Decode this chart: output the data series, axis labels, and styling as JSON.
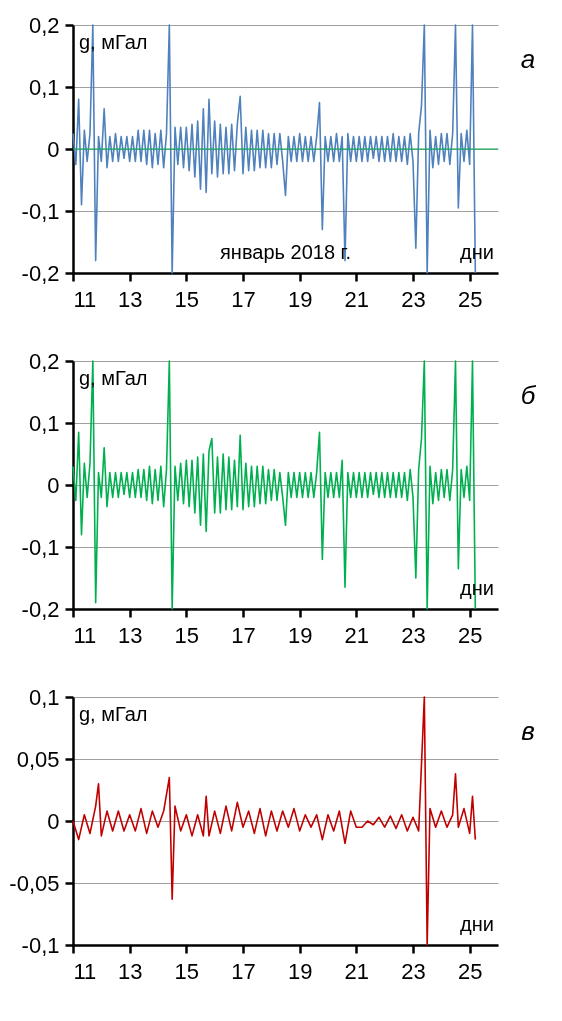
{
  "chart_data": [
    {
      "type": "line",
      "ylabel": "g, мГал",
      "xlabel": "дни",
      "annotations": [
        "а",
        "январь 2018 г."
      ],
      "grid": "y",
      "xlim": [
        11,
        26
      ],
      "xticks": [
        11,
        13,
        15,
        17,
        19,
        21,
        23,
        25
      ],
      "ylim": [
        -0.2,
        0.2
      ],
      "yticks": [
        {
          "value": -0.2,
          "label": "-0,2"
        },
        {
          "value": -0.1,
          "label": "-0,1"
        },
        {
          "value": 0,
          "label": "0"
        },
        {
          "value": 0.1,
          "label": "0,1"
        },
        {
          "value": 0.2,
          "label": "0,2"
        }
      ],
      "ref_lines": [
        {
          "axis": "y",
          "value": 0,
          "color": "#00b050"
        }
      ],
      "x": [
        11,
        11.1,
        11.2,
        11.3,
        11.4,
        11.5,
        11.6,
        11.7,
        11.8,
        11.9,
        12,
        12.1,
        12.2,
        12.3,
        12.4,
        12.5,
        12.6,
        12.7,
        12.8,
        12.9,
        13,
        13.1,
        13.2,
        13.3,
        13.4,
        13.5,
        13.6,
        13.7,
        13.8,
        13.9,
        14,
        14.1,
        14.2,
        14.3,
        14.4,
        14.5,
        14.6,
        14.7,
        14.8,
        14.9,
        15,
        15.1,
        15.2,
        15.3,
        15.4,
        15.5,
        15.6,
        15.7,
        15.8,
        15.9,
        16,
        16.1,
        16.2,
        16.3,
        16.4,
        16.5,
        16.6,
        16.7,
        16.8,
        16.9,
        17,
        17.1,
        17.2,
        17.3,
        17.4,
        17.5,
        17.6,
        17.7,
        17.8,
        17.9,
        18,
        18.1,
        18.2,
        18.3,
        18.4,
        18.5,
        18.6,
        18.7,
        18.8,
        18.9,
        19,
        19.1,
        19.2,
        19.3,
        19.4,
        19.5,
        19.6,
        19.7,
        19.8,
        19.9,
        20,
        20.1,
        20.2,
        20.3,
        20.4,
        20.5,
        20.6,
        20.7,
        20.8,
        20.9,
        21,
        21.1,
        21.2,
        21.3,
        21.4,
        21.5,
        21.6,
        21.7,
        21.8,
        21.9,
        22,
        22.1,
        22.2,
        22.3,
        22.4,
        22.5,
        22.6,
        22.7,
        22.8,
        22.9,
        23,
        23.1,
        23.2,
        23.3,
        23.4,
        23.5,
        23.6,
        23.7,
        23.8,
        23.9,
        24,
        24.1,
        24.2,
        24.3,
        24.4,
        24.5,
        24.6,
        24.7,
        24.8,
        24.9,
        25,
        25.1,
        25.2
      ],
      "series": [
        {
          "color": "#4f81bd",
          "values": [
            0.025,
            -0.025,
            0.08,
            -0.09,
            0.03,
            -0.02,
            0.025,
            0.2,
            -0.18,
            0.02,
            -0.02,
            0.065,
            -0.03,
            0.02,
            -0.02,
            0.025,
            -0.02,
            0.02,
            -0.015,
            0.02,
            -0.02,
            0.02,
            -0.02,
            0.03,
            -0.02,
            0.03,
            -0.025,
            0.03,
            -0.03,
            0.025,
            -0.025,
            0.03,
            -0.03,
            0.025,
            0.2,
            -0.2,
            0.035,
            -0.025,
            0.035,
            -0.03,
            0.035,
            -0.035,
            0.04,
            -0.045,
            0.045,
            -0.065,
            0.065,
            -0.07,
            0.08,
            -0.04,
            0.045,
            -0.045,
            0.04,
            -0.04,
            0.035,
            -0.04,
            0.04,
            -0.035,
            0.04,
            0.085,
            -0.04,
            0.035,
            -0.035,
            0.03,
            -0.035,
            0.03,
            -0.03,
            0.03,
            -0.03,
            0.025,
            -0.03,
            0.025,
            -0.025,
            0.025,
            -0.02,
            -0.075,
            0.02,
            -0.02,
            0.02,
            -0.02,
            0.025,
            -0.02,
            0.02,
            -0.02,
            0.02,
            -0.02,
            0.02,
            0.075,
            -0.13,
            0.02,
            -0.02,
            0.02,
            -0.02,
            0.025,
            -0.02,
            0.02,
            -0.18,
            0.025,
            -0.02,
            0.02,
            -0.02,
            0.02,
            -0.02,
            0.02,
            -0.02,
            0.02,
            -0.015,
            0.02,
            -0.02,
            0.02,
            -0.02,
            0.02,
            -0.02,
            0.025,
            -0.02,
            0.02,
            -0.02,
            0.02,
            -0.025,
            0.025,
            -0.02,
            -0.16,
            0.025,
            0.07,
            0.2,
            -0.2,
            0.03,
            -0.03,
            0.02,
            -0.025,
            0.025,
            -0.02,
            0.025,
            -0.025,
            0.025,
            0.2,
            -0.095,
            0.025,
            -0.02,
            0.03,
            -0.025,
            0.2,
            -0.2
          ]
        }
      ]
    },
    {
      "type": "line",
      "ylabel": "g, мГал",
      "xlabel": "дни",
      "annotations": [
        "б"
      ],
      "grid": "y",
      "xlim": [
        11,
        26
      ],
      "xticks": [
        11,
        13,
        15,
        17,
        19,
        21,
        23,
        25
      ],
      "ylim": [
        -0.2,
        0.2
      ],
      "yticks": [
        {
          "value": -0.2,
          "label": "-0,2"
        },
        {
          "value": -0.1,
          "label": "-0,1"
        },
        {
          "value": 0,
          "label": "0"
        },
        {
          "value": 0.1,
          "label": "0,1"
        },
        {
          "value": 0.2,
          "label": "0,2"
        }
      ],
      "x": [
        11,
        11.1,
        11.2,
        11.3,
        11.4,
        11.5,
        11.6,
        11.7,
        11.8,
        11.9,
        12,
        12.1,
        12.2,
        12.3,
        12.4,
        12.5,
        12.6,
        12.7,
        12.8,
        12.9,
        13,
        13.1,
        13.2,
        13.3,
        13.4,
        13.5,
        13.6,
        13.7,
        13.8,
        13.9,
        14,
        14.1,
        14.2,
        14.3,
        14.4,
        14.5,
        14.6,
        14.7,
        14.8,
        14.9,
        15,
        15.1,
        15.2,
        15.3,
        15.4,
        15.5,
        15.6,
        15.7,
        15.8,
        15.9,
        16,
        16.1,
        16.2,
        16.3,
        16.4,
        16.5,
        16.6,
        16.7,
        16.8,
        16.9,
        17,
        17.1,
        17.2,
        17.3,
        17.4,
        17.5,
        17.6,
        17.7,
        17.8,
        17.9,
        18,
        18.1,
        18.2,
        18.3,
        18.4,
        18.5,
        18.6,
        18.7,
        18.8,
        18.9,
        19,
        19.1,
        19.2,
        19.3,
        19.4,
        19.5,
        19.6,
        19.7,
        19.8,
        19.9,
        20,
        20.1,
        20.2,
        20.3,
        20.4,
        20.5,
        20.6,
        20.7,
        20.8,
        20.9,
        21,
        21.1,
        21.2,
        21.3,
        21.4,
        21.5,
        21.6,
        21.7,
        21.8,
        21.9,
        22,
        22.1,
        22.2,
        22.3,
        22.4,
        22.5,
        22.6,
        22.7,
        22.8,
        22.9,
        23,
        23.1,
        23.2,
        23.3,
        23.4,
        23.5,
        23.6,
        23.7,
        23.8,
        23.9,
        24,
        24.1,
        24.2,
        24.3,
        24.4,
        24.5,
        24.6,
        24.7,
        24.8,
        24.9,
        25,
        25.1,
        25.2
      ],
      "series": [
        {
          "color": "#00b050",
          "values": [
            0.03,
            -0.025,
            0.085,
            -0.08,
            0.035,
            -0.02,
            0.035,
            0.2,
            -0.19,
            0.02,
            -0.02,
            0.06,
            -0.035,
            0.02,
            -0.02,
            0.02,
            -0.02,
            0.02,
            -0.015,
            0.02,
            -0.02,
            0.02,
            -0.02,
            0.025,
            -0.02,
            0.025,
            -0.025,
            0.03,
            -0.03,
            0.025,
            -0.025,
            0.03,
            -0.035,
            0.025,
            0.2,
            -0.2,
            0.03,
            -0.025,
            0.035,
            -0.03,
            0.04,
            -0.035,
            0.04,
            -0.045,
            0.045,
            -0.065,
            0.05,
            -0.075,
            0.055,
            0.075,
            -0.045,
            0.045,
            -0.045,
            0.05,
            -0.04,
            0.045,
            -0.04,
            0.04,
            -0.035,
            0.08,
            -0.04,
            0.035,
            -0.035,
            0.03,
            -0.035,
            0.03,
            -0.03,
            0.03,
            -0.03,
            0.025,
            -0.025,
            0.025,
            -0.025,
            0.02,
            -0.02,
            -0.065,
            0.02,
            -0.02,
            0.02,
            -0.02,
            0.02,
            -0.02,
            0.02,
            -0.02,
            0.02,
            -0.02,
            0.02,
            0.085,
            -0.12,
            0.02,
            -0.02,
            0.02,
            -0.02,
            0.02,
            -0.02,
            0.04,
            -0.165,
            0.02,
            -0.02,
            0.02,
            -0.02,
            0.02,
            -0.02,
            0.02,
            -0.02,
            0.02,
            -0.015,
            0.02,
            -0.02,
            0.02,
            -0.02,
            0.02,
            -0.02,
            0.02,
            -0.02,
            0.02,
            -0.02,
            0.02,
            -0.025,
            0.025,
            -0.02,
            -0.15,
            0.025,
            0.075,
            0.2,
            -0.2,
            0.03,
            -0.03,
            0.02,
            -0.025,
            0.025,
            -0.02,
            0.025,
            -0.025,
            0.025,
            0.2,
            -0.135,
            0.025,
            -0.02,
            0.03,
            -0.025,
            0.2,
            -0.2
          ]
        }
      ]
    },
    {
      "type": "line",
      "ylabel": "g, мГал",
      "xlabel": "дни",
      "annotations": [
        "в"
      ],
      "grid": "y",
      "xlim": [
        11,
        26
      ],
      "xticks": [
        11,
        13,
        15,
        17,
        19,
        21,
        23,
        25
      ],
      "ylim": [
        -0.1,
        0.1
      ],
      "yticks": [
        {
          "value": -0.1,
          "label": "-0,1"
        },
        {
          "value": -0.05,
          "label": "-0,05"
        },
        {
          "value": 0,
          "label": "0"
        },
        {
          "value": 0.05,
          "label": "0,05"
        },
        {
          "value": 0.1,
          "label": "0,1"
        }
      ],
      "x": [
        11,
        11.2,
        11.4,
        11.6,
        11.8,
        11.9,
        12,
        12.2,
        12.4,
        12.6,
        12.8,
        13,
        13.2,
        13.4,
        13.6,
        13.8,
        14,
        14.2,
        14.4,
        14.5,
        14.6,
        14.8,
        15,
        15.2,
        15.4,
        15.6,
        15.7,
        15.8,
        16,
        16.2,
        16.4,
        16.6,
        16.8,
        17,
        17.2,
        17.4,
        17.6,
        17.8,
        18,
        18.2,
        18.4,
        18.6,
        18.8,
        19,
        19.2,
        19.4,
        19.6,
        19.8,
        20,
        20.2,
        20.4,
        20.6,
        20.8,
        21,
        21.2,
        21.4,
        21.6,
        21.8,
        22,
        22.2,
        22.4,
        22.6,
        22.8,
        23,
        23.2,
        23.4,
        23.5,
        23.6,
        23.8,
        24,
        24.2,
        24.4,
        24.5,
        24.6,
        24.8,
        25,
        25.1,
        25.2
      ],
      "series": [
        {
          "color": "#c00000",
          "values": [
            0,
            -0.015,
            0.005,
            -0.01,
            0.012,
            0.03,
            -0.012,
            0.008,
            -0.008,
            0.008,
            -0.008,
            0.005,
            -0.008,
            0.01,
            -0.01,
            0.008,
            -0.005,
            0.008,
            0.035,
            -0.063,
            0.012,
            -0.008,
            0.005,
            -0.012,
            0.005,
            -0.012,
            0.02,
            -0.012,
            0.008,
            -0.01,
            0.012,
            -0.008,
            0.015,
            -0.005,
            0.008,
            -0.01,
            0.01,
            -0.012,
            0.008,
            -0.008,
            0.008,
            -0.005,
            0.01,
            -0.008,
            0.005,
            -0.005,
            0.005,
            -0.015,
            0.005,
            -0.008,
            0.008,
            -0.018,
            0.008,
            -0.005,
            -0.005,
            0,
            -0.003,
            0.003,
            -0.005,
            0.004,
            -0.006,
            0.005,
            -0.008,
            0.003,
            -0.008,
            0.1,
            -0.1,
            0.01,
            -0.005,
            0.008,
            -0.005,
            0.005,
            0.038,
            -0.005,
            0.01,
            -0.01,
            0.02,
            -0.015
          ]
        }
      ]
    }
  ]
}
